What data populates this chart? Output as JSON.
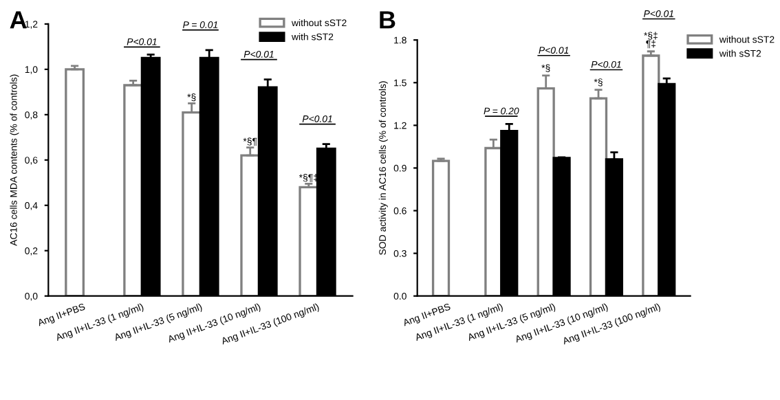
{
  "chart_data": [
    {
      "type": "bar",
      "title": "A",
      "ylabel": "AC16 cells MDA contents (% of controls)",
      "categories": [
        "Ang II+PBS",
        "Ang II+IL-33 (1 ng/ml)",
        "Ang II+IL-33 (5 ng/ml)",
        "Ang II+IL-33 (10 ng/ml)",
        "Ang II+IL-33 (100 ng/ml)"
      ],
      "series": [
        {
          "name": "without sST2",
          "color": "#ffffff",
          "values": [
            1.0,
            0.93,
            0.81,
            0.62,
            0.48
          ],
          "errors": [
            0.015,
            0.02,
            0.04,
            0.035,
            0.015
          ]
        },
        {
          "name": "with sST2",
          "color": "#000000",
          "values": [
            null,
            1.05,
            1.05,
            0.92,
            0.65
          ],
          "errors": [
            null,
            0.015,
            0.035,
            0.035,
            0.02
          ]
        }
      ],
      "ylim": [
        0,
        1.2
      ],
      "yticks": [
        {
          "value": 0,
          "label": "0,0"
        },
        {
          "value": 0.2,
          "label": "0,2"
        },
        {
          "value": 0.4,
          "label": "0,4"
        },
        {
          "value": 0.6,
          "label": "0,6"
        },
        {
          "value": 0.8,
          "label": "0,8"
        },
        {
          "value": 1.0,
          "label": "1,0"
        },
        {
          "value": 1.2,
          "label": "1,2"
        }
      ],
      "annotations": [
        "P<0.01",
        "P = 0.01",
        "P<0.01",
        "P<0.01",
        {
          "text": "*§",
          "x": "Ang II+IL-33 (5 ng/ml)",
          "y": 0.85
        },
        {
          "text": "*§¶",
          "x": "Ang II+IL-33 (10 ng/ml)",
          "y": 0.655
        },
        {
          "text": "*§¶‡",
          "x": "Ang II+IL-33 (100 ng/ml)",
          "y": 0.495
        }
      ],
      "legend": "top right",
      "grid": false
    },
    {
      "type": "bar",
      "title": "B",
      "ylabel": "SOD activity in AC16 cells (% of controls)",
      "categories": [
        "Ang II+PBS",
        "Ang II+IL-33 (1 ng/ml)",
        "Ang II+IL-33 (5 ng/ml)",
        "Ang II+IL-33 (10 ng/ml)",
        "Ang II+IL-33 (100 ng/ml)"
      ],
      "series": [
        {
          "name": "without sST2",
          "color": "#ffffff",
          "values": [
            0.95,
            1.04,
            1.46,
            1.39,
            1.69
          ],
          "errors": [
            0.015,
            0.06,
            0.09,
            0.06,
            0.03
          ]
        },
        {
          "name": "with sST2",
          "color": "#000000",
          "values": [
            null,
            1.16,
            0.97,
            0.96,
            1.49
          ],
          "errors": [
            null,
            0.05,
            0.005,
            0.05,
            0.04
          ]
        }
      ],
      "ylim": [
        0,
        1.8
      ],
      "yticks": [
        {
          "value": 0,
          "label": "0.0"
        },
        {
          "value": 0.3,
          "label": "0.3"
        },
        {
          "value": 0.6,
          "label": "0.6"
        },
        {
          "value": 0.9,
          "label": "0.9"
        },
        {
          "value": 1.2,
          "label": "1.2"
        },
        {
          "value": 1.5,
          "label": "1.5"
        },
        {
          "value": 1.8,
          "label": "1.8"
        }
      ],
      "annotations": [
        "P = 0.20",
        "P<0.01",
        "P<0.01",
        "P<0.01",
        {
          "text": "*§",
          "x": "Ang II+IL-33 (5 ng/ml)",
          "y": 1.56
        },
        {
          "text": "*§",
          "x": "Ang II+IL-33 (10 ng/ml)",
          "y": 1.46
        },
        {
          "text": "*§‡\n¶‡",
          "x": "Ang II+IL-33 (100 ng/ml)",
          "y": 1.73
        }
      ],
      "legend": "top right",
      "grid": false
    }
  ]
}
